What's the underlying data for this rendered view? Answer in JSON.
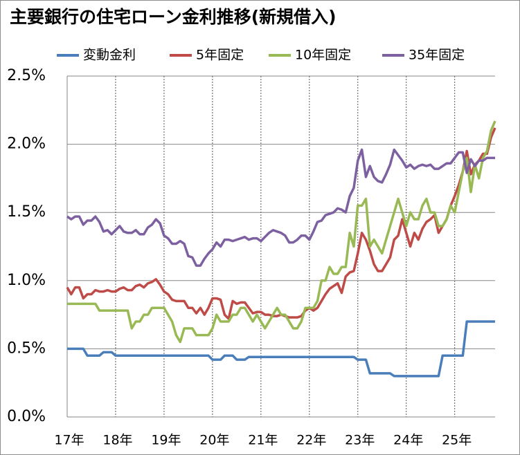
{
  "chart_data": {
    "type": "line",
    "title": "主要銀行の住宅ローン金利推移(新規借入)",
    "categories": [
      "17年",
      null,
      null,
      null,
      null,
      null,
      null,
      null,
      null,
      null,
      null,
      null,
      "18年",
      null,
      null,
      null,
      null,
      null,
      null,
      null,
      null,
      null,
      null,
      null,
      "19年",
      null,
      null,
      null,
      null,
      null,
      null,
      null,
      null,
      null,
      null,
      null,
      "20年",
      null,
      null,
      null,
      null,
      null,
      null,
      null,
      null,
      null,
      null,
      null,
      "21年",
      null,
      null,
      null,
      null,
      null,
      null,
      null,
      null,
      null,
      null,
      null,
      "22年",
      null,
      null,
      null,
      null,
      null,
      null,
      null,
      null,
      null,
      null,
      null,
      "23年",
      null,
      null,
      null,
      null,
      null,
      null,
      null,
      null,
      null,
      null,
      null,
      "24年",
      null,
      null,
      null,
      null,
      null,
      null,
      null,
      null,
      null,
      null,
      null,
      "25年",
      null,
      null,
      null,
      null,
      null,
      null,
      null,
      null,
      null,
      null
    ],
    "series": [
      {
        "name": "変動金利",
        "color": "#4a7ebb",
        "values": [
          0.5,
          0.5,
          0.5,
          0.5,
          0.5,
          0.45,
          0.45,
          0.45,
          0.45,
          0.475,
          0.475,
          0.475,
          0.45,
          0.45,
          0.45,
          0.45,
          0.45,
          0.45,
          0.45,
          0.45,
          0.45,
          0.45,
          0.45,
          0.45,
          0.45,
          0.45,
          0.45,
          0.45,
          0.45,
          0.45,
          0.45,
          0.45,
          0.45,
          0.45,
          0.45,
          0.45,
          0.42,
          0.42,
          0.42,
          0.45,
          0.45,
          0.45,
          0.42,
          0.42,
          0.42,
          0.44,
          0.44,
          0.44,
          0.44,
          0.44,
          0.44,
          0.44,
          0.44,
          0.44,
          0.44,
          0.44,
          0.44,
          0.44,
          0.44,
          0.44,
          0.44,
          0.44,
          0.44,
          0.44,
          0.44,
          0.44,
          0.44,
          0.44,
          0.44,
          0.44,
          0.44,
          0.44,
          0.42,
          0.42,
          0.42,
          0.32,
          0.32,
          0.32,
          0.32,
          0.32,
          0.32,
          0.3,
          0.3,
          0.3,
          0.3,
          0.3,
          0.3,
          0.3,
          0.3,
          0.3,
          0.3,
          0.3,
          0.3,
          0.45,
          0.45,
          0.45,
          0.45,
          0.45,
          0.45,
          0.7,
          0.7,
          0.7,
          0.7,
          0.7,
          0.7,
          0.7,
          0.7
        ]
      },
      {
        "name": "5年固定",
        "color": "#be4b48",
        "values": [
          0.95,
          0.9,
          0.95,
          0.95,
          0.87,
          0.9,
          0.9,
          0.93,
          0.92,
          0.92,
          0.93,
          0.92,
          0.92,
          0.94,
          0.95,
          0.93,
          0.93,
          0.96,
          0.97,
          0.95,
          0.98,
          0.99,
          1.01,
          0.97,
          0.92,
          0.9,
          0.86,
          0.85,
          0.85,
          0.85,
          0.8,
          0.8,
          0.76,
          0.8,
          0.75,
          0.8,
          0.87,
          0.87,
          0.86,
          0.75,
          0.72,
          0.85,
          0.83,
          0.84,
          0.84,
          0.8,
          0.76,
          0.77,
          0.77,
          0.75,
          0.75,
          0.74,
          0.74,
          0.75,
          0.74,
          0.73,
          0.73,
          0.73,
          0.74,
          0.78,
          0.8,
          0.78,
          0.8,
          0.85,
          0.9,
          0.94,
          0.96,
          0.98,
          0.91,
          1.03,
          1.06,
          1.07,
          1.2,
          1.35,
          1.3,
          1.22,
          1.12,
          1.07,
          1.07,
          1.12,
          1.17,
          1.3,
          1.33,
          1.45,
          1.35,
          1.25,
          1.35,
          1.3,
          1.38,
          1.43,
          1.45,
          1.48,
          1.35,
          1.4,
          1.45,
          1.55,
          1.62,
          1.7,
          1.8,
          1.95,
          1.78,
          1.85,
          1.88,
          1.93,
          1.93,
          2.05,
          2.12
        ]
      },
      {
        "name": "10年固定",
        "color": "#98b954",
        "values": [
          0.83,
          0.83,
          0.83,
          0.83,
          0.83,
          0.83,
          0.83,
          0.83,
          0.78,
          0.78,
          0.78,
          0.78,
          0.78,
          0.78,
          0.78,
          0.78,
          0.65,
          0.7,
          0.7,
          0.75,
          0.75,
          0.8,
          0.8,
          0.8,
          0.8,
          0.75,
          0.7,
          0.6,
          0.55,
          0.65,
          0.65,
          0.65,
          0.6,
          0.6,
          0.6,
          0.6,
          0.65,
          0.75,
          0.7,
          0.7,
          0.7,
          0.75,
          0.75,
          0.8,
          0.8,
          0.75,
          0.7,
          0.75,
          0.7,
          0.65,
          0.7,
          0.75,
          0.8,
          0.75,
          0.75,
          0.7,
          0.65,
          0.65,
          0.7,
          0.8,
          0.8,
          0.8,
          0.85,
          1.0,
          1.0,
          1.1,
          1.05,
          1.05,
          1.1,
          1.1,
          1.35,
          1.25,
          1.55,
          1.55,
          1.6,
          1.25,
          1.3,
          1.25,
          1.2,
          1.3,
          1.4,
          1.5,
          1.6,
          1.5,
          1.4,
          1.5,
          1.45,
          1.45,
          1.55,
          1.6,
          1.5,
          1.5,
          1.4,
          1.4,
          1.45,
          1.55,
          1.5,
          1.65,
          1.8,
          1.9,
          1.65,
          1.85,
          1.75,
          1.9,
          1.95,
          2.1,
          2.17
        ]
      },
      {
        "name": "35年固定",
        "color": "#7d60a0",
        "values": [
          1.47,
          1.45,
          1.47,
          1.47,
          1.41,
          1.44,
          1.44,
          1.47,
          1.43,
          1.36,
          1.37,
          1.34,
          1.37,
          1.4,
          1.36,
          1.35,
          1.35,
          1.37,
          1.34,
          1.34,
          1.39,
          1.41,
          1.45,
          1.42,
          1.33,
          1.31,
          1.27,
          1.27,
          1.29,
          1.27,
          1.18,
          1.17,
          1.11,
          1.11,
          1.16,
          1.2,
          1.23,
          1.28,
          1.25,
          1.3,
          1.3,
          1.29,
          1.3,
          1.31,
          1.32,
          1.3,
          1.31,
          1.31,
          1.29,
          1.32,
          1.35,
          1.37,
          1.36,
          1.35,
          1.33,
          1.28,
          1.28,
          1.3,
          1.33,
          1.33,
          1.3,
          1.36,
          1.43,
          1.44,
          1.48,
          1.49,
          1.5,
          1.53,
          1.52,
          1.5,
          1.62,
          1.68,
          1.88,
          1.96,
          1.76,
          1.84,
          1.76,
          1.73,
          1.72,
          1.78,
          1.85,
          1.96,
          1.92,
          1.88,
          1.83,
          1.85,
          1.82,
          1.84,
          1.85,
          1.84,
          1.85,
          1.82,
          1.82,
          1.84,
          1.86,
          1.86,
          1.9,
          1.94,
          1.94,
          1.79,
          1.89,
          1.84,
          1.88,
          1.88,
          1.9,
          1.9,
          1.9
        ]
      }
    ],
    "ylim": [
      0,
      2.5
    ],
    "yticks": [
      {
        "value": 0,
        "label": "0.0%"
      },
      {
        "value": 0.5,
        "label": "0.5%"
      },
      {
        "value": 1,
        "label": "1.0%"
      },
      {
        "value": 1.5,
        "label": "1.5%"
      },
      {
        "value": 2,
        "label": "2.0%"
      },
      {
        "value": 2.5,
        "label": "2.5%"
      }
    ],
    "grid": true,
    "legend": "top"
  }
}
